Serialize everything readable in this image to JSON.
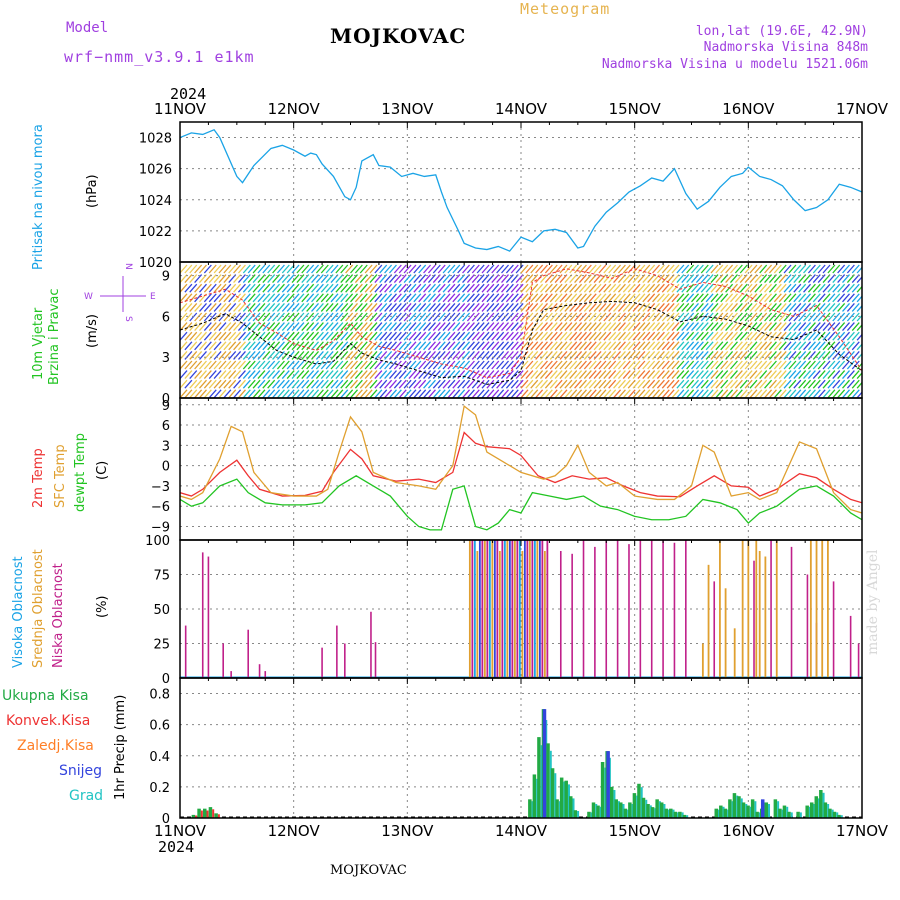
{
  "header": {
    "model_label": "Model",
    "model_name": "wrf−nmm_v3.9.1  e1km",
    "station": "MOJKOVAC",
    "product": "Meteogram",
    "coords": "lon,lat (19.6E, 42.9N)",
    "elevation": "Nadmorska Visina 848m",
    "model_elevation": "Nadmorska Visina u modelu 1521.06m",
    "year_top": "2024",
    "year_bottom": "2024",
    "footer_station": "MOJKOVAC",
    "credit": "made by Angel"
  },
  "colors": {
    "pressure": "#1aa3e6",
    "temp2m": "#ee3333",
    "sfc_temp": "#e0a030",
    "dewpt": "#22c422",
    "high_cloud": "#1aa3e6",
    "mid_cloud": "#e0a030",
    "low_cloud": "#c0208a",
    "total_precip": "#22aa44",
    "conv_precip": "#ee3333",
    "frozen_precip": "#ff7f27",
    "snow": "#3344dd",
    "graupel": "#22c4c4",
    "header_purple": "#a040e0",
    "header_orange": "#e6b450"
  },
  "chart_data": [
    {
      "panel": "pressure",
      "type": "line",
      "ylabel_left": "Pritisak na nivou mora",
      "ylabel_unit": "(hPa)",
      "ylim": [
        1020,
        1029
      ],
      "yticks": [
        "1028",
        "1026",
        "1024",
        "1022",
        "1020"
      ],
      "x_days": [
        11.0,
        11.1,
        11.2,
        11.3,
        11.35,
        11.5,
        11.55,
        11.65,
        11.8,
        11.9,
        12.0,
        12.1,
        12.15,
        12.2,
        12.25,
        12.35,
        12.45,
        12.5,
        12.55,
        12.6,
        12.7,
        12.75,
        12.85,
        12.95,
        13.05,
        13.15,
        13.25,
        13.3,
        13.35,
        13.45,
        13.5,
        13.6,
        13.7,
        13.8,
        13.9,
        14.0,
        14.1,
        14.2,
        14.3,
        14.4,
        14.5,
        14.55,
        14.65,
        14.75,
        14.85,
        14.95,
        15.05,
        15.15,
        15.25,
        15.35,
        15.45,
        15.55,
        15.65,
        15.75,
        15.85,
        15.95,
        16.0,
        16.1,
        16.2,
        16.3,
        16.4,
        16.5,
        16.6,
        16.7,
        16.8,
        16.9,
        17.0
      ],
      "values": [
        1028.0,
        1028.3,
        1028.2,
        1028.5,
        1028.0,
        1025.5,
        1025.1,
        1026.2,
        1027.3,
        1027.5,
        1027.2,
        1026.8,
        1027.0,
        1026.9,
        1026.3,
        1025.5,
        1024.2,
        1024.0,
        1024.8,
        1026.5,
        1026.9,
        1026.2,
        1026.1,
        1025.5,
        1025.7,
        1025.5,
        1025.6,
        1024.5,
        1023.5,
        1022.0,
        1021.2,
        1020.9,
        1020.8,
        1021.0,
        1020.7,
        1021.6,
        1021.3,
        1022.0,
        1022.1,
        1021.9,
        1020.9,
        1021.0,
        1022.3,
        1023.2,
        1023.8,
        1024.5,
        1024.9,
        1025.4,
        1025.2,
        1026.0,
        1024.4,
        1023.4,
        1023.9,
        1024.8,
        1025.5,
        1025.7,
        1026.1,
        1025.5,
        1025.3,
        1024.9,
        1024.0,
        1023.3,
        1023.5,
        1024.0,
        1025.0,
        1024.8,
        1024.5
      ]
    },
    {
      "panel": "wind",
      "type": "line",
      "ylabel_left": "10m Vjetar",
      "ylabel_left2": "Brzina i Pravac",
      "ylabel_unit": "(m/s)",
      "compass_ns": "N",
      "compass_w": "W",
      "compass_e": "E",
      "compass_s": "S",
      "ylim": [
        0,
        10
      ],
      "yticks": [
        "9",
        "6",
        "3",
        "0"
      ],
      "series": [
        {
          "color": "#000000",
          "x_days": [
            11.0,
            11.2,
            11.4,
            11.55,
            11.7,
            11.85,
            12.0,
            12.2,
            12.35,
            12.5,
            12.6,
            12.75,
            12.9,
            13.1,
            13.3,
            13.5,
            13.7,
            13.9,
            14.0,
            14.1,
            14.2,
            14.4,
            14.6,
            14.8,
            15.0,
            15.2,
            15.4,
            15.6,
            15.8,
            16.0,
            16.2,
            16.4,
            16.6,
            16.8,
            17.0
          ],
          "values": [
            5.0,
            5.5,
            6.2,
            5.5,
            4.5,
            3.5,
            3.0,
            2.5,
            2.7,
            4.0,
            3.3,
            2.8,
            2.5,
            2.0,
            1.5,
            1.6,
            1.0,
            1.3,
            2.0,
            5.0,
            6.5,
            6.8,
            7.0,
            7.1,
            7.0,
            6.5,
            5.6,
            6.0,
            5.8,
            5.3,
            4.5,
            4.3,
            5.0,
            3.2,
            2.0
          ]
        },
        {
          "color": "#ee3333",
          "x_days": [
            11.0,
            11.2,
            11.4,
            11.55,
            11.7,
            11.85,
            12.0,
            12.2,
            12.35,
            12.5,
            12.6,
            12.75,
            12.9,
            13.1,
            13.3,
            13.5,
            13.7,
            13.9,
            14.0,
            14.1,
            14.2,
            14.4,
            14.6,
            14.8,
            15.0,
            15.2,
            15.4,
            15.6,
            15.8,
            16.0,
            16.2,
            16.4,
            16.6,
            16.8,
            17.0
          ],
          "values": [
            7.0,
            7.5,
            8.0,
            7.2,
            5.5,
            4.8,
            4.0,
            3.5,
            4.2,
            5.5,
            4.5,
            3.8,
            3.5,
            3.0,
            2.5,
            2.2,
            1.5,
            1.8,
            3.0,
            8.5,
            9.0,
            9.5,
            9.2,
            8.8,
            9.5,
            9.0,
            8.0,
            8.5,
            8.2,
            7.5,
            6.5,
            6.0,
            6.8,
            4.5,
            2.0
          ]
        }
      ]
    },
    {
      "panel": "temperature",
      "type": "line",
      "ylabel_1": "2m Temp",
      "ylabel_2": "SFC Temp",
      "ylabel_3": "dewpt Temp",
      "ylabel_unit": "(C)",
      "ylim": [
        -11,
        10
      ],
      "yticks": [
        "9",
        "6",
        "3",
        "0",
        "−3",
        "−6",
        "−9"
      ],
      "series": [
        {
          "name": "2m Temp",
          "color": "#ee3333",
          "x_days": [
            11.0,
            11.1,
            11.2,
            11.35,
            11.5,
            11.6,
            11.7,
            11.9,
            12.1,
            12.25,
            12.35,
            12.5,
            12.6,
            12.7,
            12.9,
            13.1,
            13.25,
            13.4,
            13.5,
            13.6,
            13.7,
            13.9,
            14.0,
            14.15,
            14.3,
            14.45,
            14.6,
            14.75,
            14.9,
            15.05,
            15.2,
            15.4,
            15.55,
            15.7,
            15.85,
            16.0,
            16.1,
            16.25,
            16.45,
            16.6,
            16.75,
            16.9,
            17.0
          ],
          "values": [
            -4.0,
            -4.5,
            -3.5,
            -1.0,
            0.8,
            -1.5,
            -3.5,
            -4.5,
            -4.4,
            -3.8,
            -1.0,
            2.4,
            1.0,
            -1.5,
            -2.3,
            -2.0,
            -2.5,
            -1.0,
            4.9,
            3.3,
            2.8,
            2.5,
            1.5,
            -1.5,
            -2.5,
            -1.5,
            -2.0,
            -1.8,
            -3.0,
            -4.0,
            -4.5,
            -4.6,
            -3.0,
            -1.5,
            -3.0,
            -3.2,
            -4.5,
            -3.5,
            -1.2,
            -1.8,
            -3.5,
            -5.0,
            -5.5
          ]
        },
        {
          "name": "SFC Temp",
          "color": "#e0a030",
          "x_days": [
            11.0,
            11.1,
            11.2,
            11.35,
            11.45,
            11.55,
            11.65,
            11.8,
            12.0,
            12.2,
            12.3,
            12.4,
            12.5,
            12.6,
            12.7,
            12.9,
            13.1,
            13.25,
            13.4,
            13.5,
            13.6,
            13.7,
            13.9,
            14.0,
            14.2,
            14.3,
            14.4,
            14.5,
            14.6,
            14.75,
            14.85,
            15.0,
            15.2,
            15.35,
            15.5,
            15.6,
            15.7,
            15.85,
            16.0,
            16.1,
            16.25,
            16.45,
            16.6,
            16.75,
            16.9,
            17.0
          ],
          "values": [
            -4.5,
            -5.0,
            -4.0,
            1.0,
            5.8,
            5.0,
            -1.0,
            -4.0,
            -4.5,
            -4.5,
            -3.5,
            2.0,
            7.2,
            5.0,
            -1.0,
            -2.5,
            -3.0,
            -3.5,
            0.0,
            8.8,
            7.5,
            2.0,
            0.0,
            -1.0,
            -2.0,
            -1.5,
            0.0,
            3.0,
            -1.0,
            -3.0,
            -2.5,
            -4.5,
            -5.0,
            -5.0,
            -3.0,
            3.0,
            2.0,
            -4.5,
            -4.0,
            -5.0,
            -4.0,
            3.5,
            2.5,
            -4.0,
            -6.5,
            -7.0
          ]
        },
        {
          "name": "dewpt Temp",
          "color": "#22c422",
          "x_days": [
            11.0,
            11.1,
            11.2,
            11.35,
            11.5,
            11.6,
            11.75,
            11.9,
            12.1,
            12.25,
            12.4,
            12.55,
            12.7,
            12.85,
            13.0,
            13.1,
            13.2,
            13.3,
            13.4,
            13.5,
            13.6,
            13.7,
            13.8,
            13.9,
            14.0,
            14.1,
            14.25,
            14.4,
            14.55,
            14.7,
            14.85,
            15.0,
            15.15,
            15.3,
            15.45,
            15.6,
            15.75,
            15.9,
            16.0,
            16.1,
            16.25,
            16.45,
            16.6,
            16.75,
            16.9,
            17.0
          ],
          "values": [
            -5.0,
            -6.0,
            -5.5,
            -3.0,
            -2.0,
            -4.0,
            -5.5,
            -5.8,
            -5.8,
            -5.5,
            -3.0,
            -1.5,
            -3.0,
            -4.5,
            -7.5,
            -9.0,
            -9.5,
            -9.5,
            -3.5,
            -3.0,
            -9.0,
            -9.5,
            -8.5,
            -6.5,
            -7.0,
            -4.0,
            -4.5,
            -5.0,
            -4.5,
            -6.0,
            -6.5,
            -7.5,
            -8.0,
            -8.0,
            -7.5,
            -5.0,
            -5.5,
            -6.5,
            -8.5,
            -7.0,
            -6.0,
            -3.5,
            -3.0,
            -4.5,
            -7.0,
            -8.0
          ]
        }
      ]
    },
    {
      "panel": "clouds",
      "type": "bar",
      "ylabel_1": "Visoka Oblacnost",
      "ylabel_2": "Srednja Oblacnost",
      "ylabel_3": "Niska Oblacnost",
      "ylabel_unit": "(%)",
      "ylim": [
        0,
        100
      ],
      "yticks": [
        "100",
        "75",
        "50",
        "25",
        "0"
      ],
      "low_x_days": [
        11.05,
        11.2,
        11.25,
        11.38,
        11.45,
        11.6,
        11.7,
        11.75,
        12.25,
        12.38,
        12.45,
        12.68,
        12.72,
        14.35,
        14.45,
        14.55,
        14.65,
        14.75,
        14.85,
        14.95,
        15.05,
        15.15,
        15.25,
        15.35,
        15.45,
        15.7,
        16.05,
        16.2,
        16.38,
        16.52,
        16.6,
        16.75,
        16.9,
        16.97
      ],
      "low_values": [
        38,
        91,
        88,
        25,
        5,
        35,
        10,
        5,
        22,
        38,
        25,
        48,
        26,
        92,
        90,
        100,
        95,
        100,
        100,
        97,
        100,
        100,
        100,
        98,
        100,
        70,
        85,
        100,
        95,
        75,
        40,
        70,
        45,
        25
      ],
      "mid_x_days": [
        15.6,
        15.65,
        15.75,
        15.8,
        15.88,
        15.95,
        16.0,
        16.07,
        16.1,
        16.15,
        16.25,
        16.55,
        16.6,
        16.65,
        16.7
      ],
      "mid_values": [
        25,
        82,
        100,
        65,
        36,
        100,
        100,
        100,
        92,
        88,
        100,
        100,
        100,
        100,
        100
      ],
      "dense_band_days": [
        13.55,
        14.25
      ]
    },
    {
      "panel": "precip",
      "type": "bar",
      "legend": [
        "Ukupna  Kisa",
        "Konvek.Kisa",
        "Zaledj.Kisa",
        "Snijeg",
        "Grad"
      ],
      "ylabel_left": "1hr Precip (mm)",
      "ylim": [
        0,
        0.9
      ],
      "yticks": [
        "0.8",
        "0.6",
        "0.4",
        "0.2",
        "0"
      ],
      "x_ticks": [
        "11NOV",
        "12NOV",
        "13NOV",
        "14NOV",
        "15NOV",
        "16NOV",
        "17NOV"
      ],
      "x_days": [
        11.12,
        11.17,
        11.22,
        11.27,
        11.32,
        14.08,
        14.12,
        14.16,
        14.2,
        14.24,
        14.28,
        14.32,
        14.36,
        14.4,
        14.44,
        14.48,
        14.6,
        14.64,
        14.68,
        14.72,
        14.76,
        14.8,
        14.84,
        14.88,
        14.92,
        14.96,
        15.0,
        15.04,
        15.08,
        15.12,
        15.16,
        15.2,
        15.24,
        15.28,
        15.32,
        15.36,
        15.4,
        15.44,
        15.72,
        15.76,
        15.8,
        15.84,
        15.88,
        15.92,
        15.96,
        16.0,
        16.04,
        16.08,
        16.12,
        16.16,
        16.24,
        16.28,
        16.32,
        16.36,
        16.44,
        16.52,
        16.56,
        16.6,
        16.64,
        16.68,
        16.72,
        16.76,
        16.8
      ],
      "values": [
        0.02,
        0.06,
        0.06,
        0.07,
        0.03,
        0.12,
        0.28,
        0.52,
        0.7,
        0.48,
        0.32,
        0.12,
        0.26,
        0.24,
        0.14,
        0.05,
        0.04,
        0.1,
        0.08,
        0.36,
        0.43,
        0.2,
        0.12,
        0.1,
        0.06,
        0.1,
        0.16,
        0.22,
        0.13,
        0.09,
        0.07,
        0.12,
        0.1,
        0.06,
        0.06,
        0.04,
        0.04,
        0.02,
        0.06,
        0.08,
        0.06,
        0.12,
        0.16,
        0.14,
        0.1,
        0.08,
        0.12,
        0.04,
        0.06,
        0.1,
        0.12,
        0.06,
        0.08,
        0.04,
        0.04,
        0.08,
        0.1,
        0.14,
        0.18,
        0.1,
        0.06,
        0.04,
        0.02
      ],
      "snow_x_days": [
        14.2,
        14.76,
        16.12
      ],
      "snow_values": [
        0.7,
        0.43,
        0.12
      ]
    }
  ]
}
